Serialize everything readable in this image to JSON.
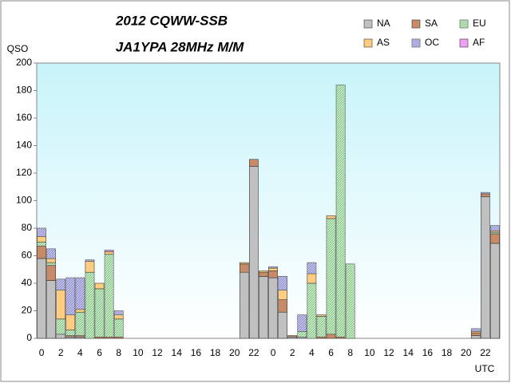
{
  "chart_data": {
    "type": "stacked_bar",
    "title": "2012 CQWW-SSB",
    "subtitle": "JA1YPA  28MHz M/M",
    "y_label": "QSO",
    "x_label": "UTC",
    "categories": [
      "0",
      null,
      "2",
      null,
      "4",
      null,
      "6",
      null,
      "8",
      null,
      "10",
      null,
      "12",
      null,
      "14",
      null,
      "16",
      null,
      "18",
      null,
      "20",
      null,
      "22",
      null,
      "0",
      null,
      "2",
      null,
      "4",
      null,
      "6",
      null,
      "8",
      null,
      "10",
      null,
      "12",
      null,
      "14",
      null,
      "16",
      null,
      "18",
      null,
      "20",
      null,
      "22",
      null
    ],
    "ylim": [
      0,
      200
    ],
    "yticks": [
      0,
      20,
      40,
      60,
      80,
      100,
      120,
      140,
      160,
      180,
      200
    ],
    "series": [
      {
        "name": "NA",
        "color": "#c0c0c0",
        "values": [
          58,
          42,
          3,
          1,
          1,
          0,
          0,
          0,
          0,
          0,
          0,
          0,
          0,
          0,
          0,
          0,
          0,
          0,
          0,
          0,
          0,
          48,
          125,
          45,
          44,
          19,
          1,
          1,
          0,
          0,
          0,
          0,
          0,
          0,
          0,
          0,
          0,
          0,
          0,
          0,
          0,
          0,
          0,
          0,
          0,
          2,
          103,
          69
        ]
      },
      {
        "name": "SA",
        "color": "#c98b67",
        "values": [
          9,
          11,
          0,
          1,
          1,
          0,
          1,
          1,
          1,
          0,
          0,
          0,
          0,
          0,
          0,
          0,
          0,
          0,
          0,
          0,
          0,
          6,
          5,
          3,
          5,
          9,
          1,
          0,
          0,
          1,
          3,
          1,
          0,
          0,
          0,
          0,
          0,
          0,
          0,
          0,
          0,
          0,
          0,
          0,
          0,
          2,
          2,
          7
        ]
      },
      {
        "name": "EU",
        "color": "#99e699",
        "values": [
          3,
          2,
          11,
          4,
          17,
          48,
          35,
          60,
          13,
          0,
          0,
          0,
          0,
          0,
          0,
          0,
          0,
          0,
          0,
          0,
          0,
          0,
          0,
          0,
          0,
          0,
          0,
          4,
          40,
          15,
          84,
          183,
          54,
          0,
          0,
          0,
          0,
          0,
          0,
          0,
          0,
          0,
          0,
          0,
          0,
          0,
          0,
          1
        ]
      },
      {
        "name": "AS",
        "color": "#ffcc80",
        "values": [
          4,
          3,
          21,
          11,
          2,
          8,
          4,
          2,
          3,
          0,
          0,
          0,
          0,
          0,
          0,
          0,
          0,
          0,
          0,
          0,
          0,
          1,
          0,
          1,
          2,
          7,
          0,
          0,
          7,
          1,
          2,
          0,
          0,
          0,
          0,
          0,
          0,
          0,
          0,
          0,
          0,
          0,
          0,
          0,
          0,
          1,
          0,
          1
        ]
      },
      {
        "name": "OC",
        "color": "#9999ee",
        "values": [
          6,
          7,
          8,
          27,
          23,
          1,
          0,
          0,
          3,
          0,
          0,
          0,
          0,
          0,
          0,
          0,
          0,
          0,
          0,
          0,
          0,
          0,
          0,
          0,
          1,
          10,
          0,
          12,
          8,
          0,
          0,
          0,
          0,
          0,
          0,
          0,
          0,
          0,
          0,
          0,
          0,
          0,
          0,
          0,
          0,
          2,
          1,
          4
        ]
      },
      {
        "name": "AF",
        "color": "#f0a0f0",
        "values": [
          0,
          0,
          0,
          0,
          0,
          0,
          0,
          1,
          0,
          0,
          0,
          0,
          0,
          0,
          0,
          0,
          0,
          0,
          0,
          0,
          0,
          0,
          0,
          0,
          0,
          0,
          0,
          0,
          0,
          0,
          0,
          0,
          0,
          0,
          0,
          0,
          0,
          0,
          0,
          0,
          0,
          0,
          0,
          0,
          0,
          0,
          0,
          0
        ]
      }
    ]
  }
}
